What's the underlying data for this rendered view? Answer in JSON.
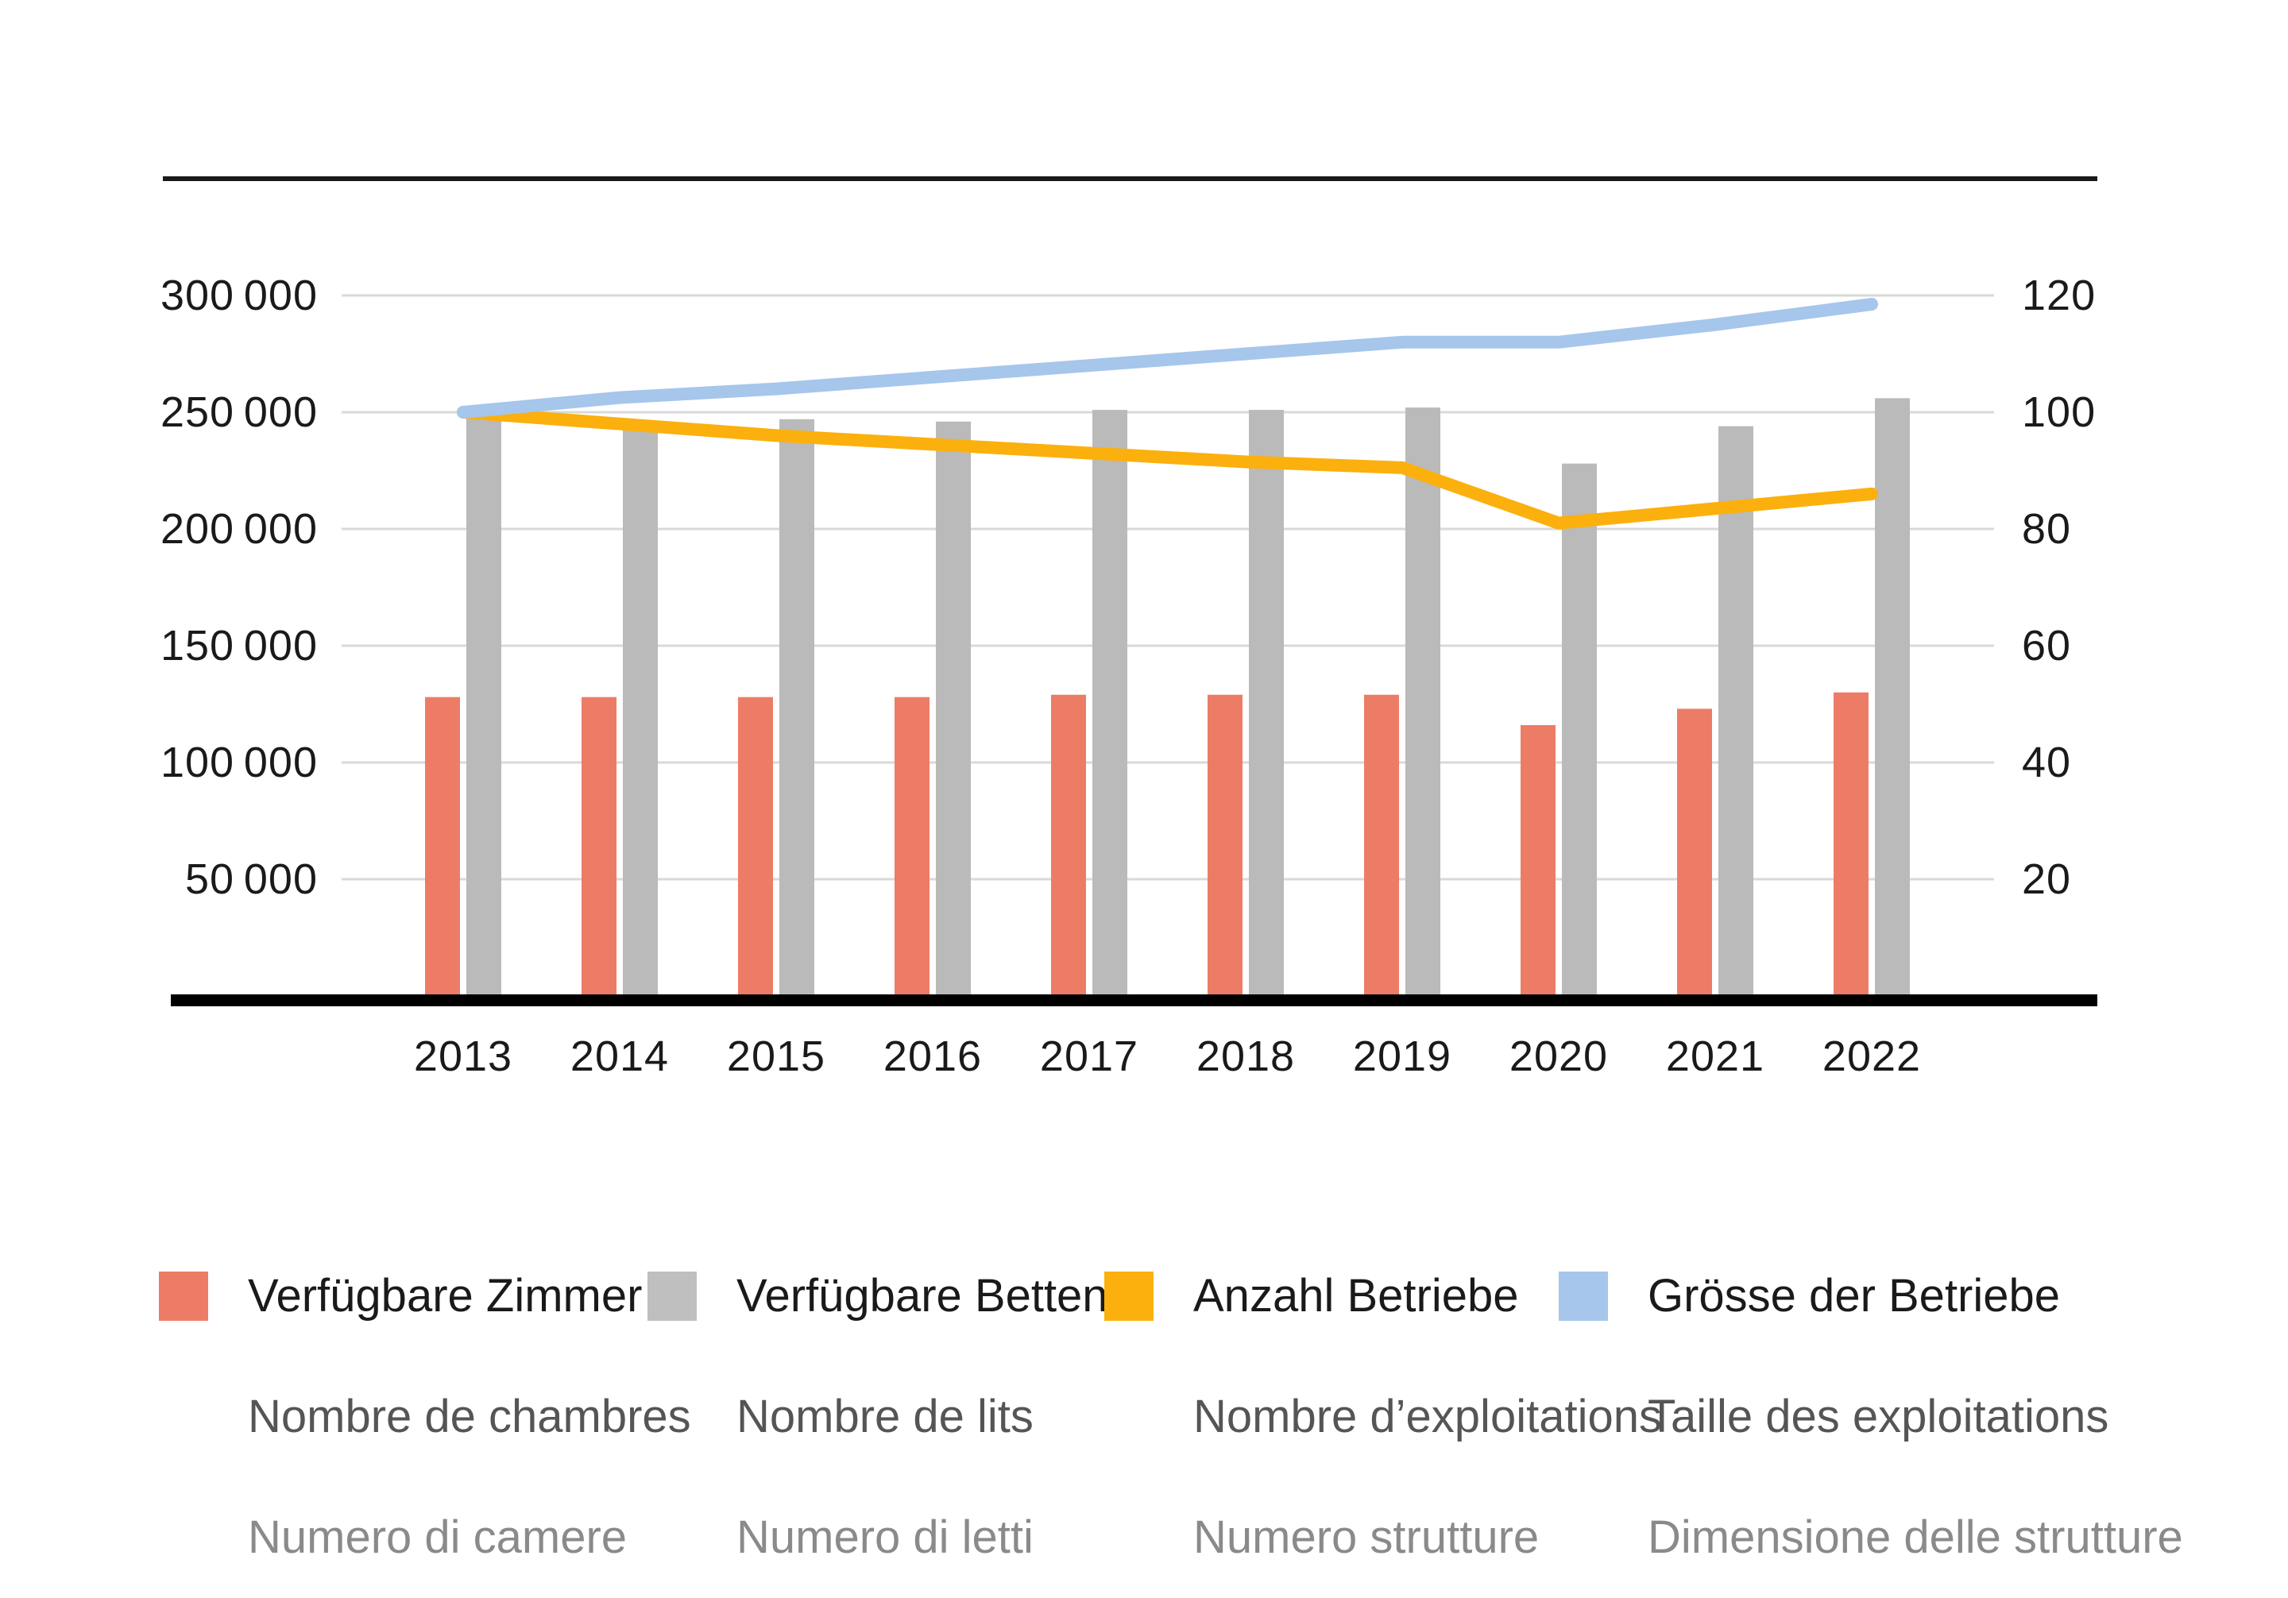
{
  "page": {
    "background": "#ffffff"
  },
  "style": {
    "grid_color": "#d9d9d9",
    "axis_color": "#000000",
    "top_rule_color": "#1a1a1a",
    "text_color": "#1a1a1a"
  },
  "chart_data": {
    "type": "bar-line-combo",
    "title": "",
    "categories": [
      "2013",
      "2014",
      "2015",
      "2016",
      "2017",
      "2018",
      "2019",
      "2020",
      "2021",
      "2022"
    ],
    "series": [
      {
        "id": "zimmer",
        "name": "Verfügbare Zimmer",
        "kind": "bar",
        "axis": "left",
        "color": "#ED7C66",
        "values": [
          128000,
          128000,
          128000,
          128000,
          129000,
          129000,
          129000,
          116000,
          123000,
          130000
        ]
      },
      {
        "id": "betten",
        "name": "Verfügbare Betten",
        "kind": "bar",
        "axis": "left",
        "color": "#BABABA",
        "values": [
          248000,
          246000,
          247000,
          246000,
          251000,
          251000,
          252000,
          228000,
          244000,
          256000
        ]
      },
      {
        "id": "betriebe",
        "name": "Anzahl Betriebe",
        "kind": "line",
        "axis": "right",
        "color": "#FBB00D",
        "values": [
          100,
          98,
          96,
          94.5,
          93,
          91.5,
          90.5,
          81,
          83.5,
          86
        ]
      },
      {
        "id": "groesse",
        "name": "Grösse der Betriebe",
        "kind": "line",
        "axis": "right",
        "color": "#A6C6EB",
        "values": [
          100,
          102.5,
          104,
          106,
          108,
          110,
          112,
          112,
          115,
          118.5
        ]
      }
    ],
    "left_axis": {
      "range": [
        0,
        300000
      ],
      "ticks": [
        {
          "value": 300000,
          "label": "300 000"
        },
        {
          "value": 250000,
          "label": "250 000"
        },
        {
          "value": 200000,
          "label": "200 000"
        },
        {
          "value": 150000,
          "label": "150 000"
        },
        {
          "value": 100000,
          "label": "100 000"
        },
        {
          "value": 50000,
          "label": "50 000"
        }
      ]
    },
    "right_axis": {
      "range": [
        0,
        120
      ],
      "ticks": [
        {
          "value": 120,
          "label": "120"
        },
        {
          "value": 100,
          "label": "100"
        },
        {
          "value": 80,
          "label": "80"
        },
        {
          "value": 60,
          "label": "60"
        },
        {
          "value": 40,
          "label": "40"
        },
        {
          "value": 20,
          "label": "20"
        }
      ]
    },
    "grid": true,
    "legend_position": "bottom"
  },
  "legend": {
    "items": [
      {
        "swatch_color": "#ED7C66",
        "lines": [
          "Verfügbare Zimmer",
          "Nombre de chambres",
          "Numero di camere"
        ]
      },
      {
        "swatch_color": "#BFBFBF",
        "lines": [
          "Verfügbare Betten",
          "Nombre de lits",
          "Numero di letti"
        ]
      },
      {
        "swatch_color": "#FBB00D",
        "lines": [
          "Anzahl Betriebe",
          "Nombre d’exploitations",
          "Numero strutture"
        ]
      },
      {
        "swatch_color": "#A6C6EB",
        "lines": [
          "Grösse der Betriebe",
          "Taille des exploitations",
          "Dimensione delle strutture"
        ]
      }
    ]
  }
}
